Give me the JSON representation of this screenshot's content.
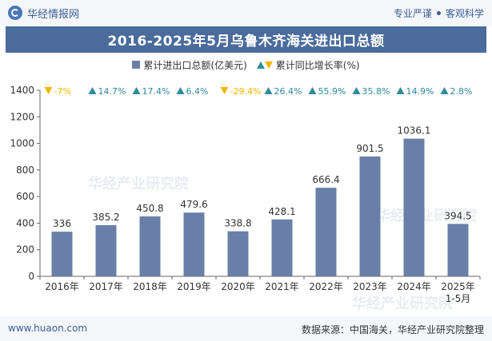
{
  "header": {
    "brand": "华经情报网",
    "slogan_left": "专业严谨",
    "slogan_right": "客观科学"
  },
  "title": "2016-2025年5月乌鲁木齐海关进出口总额",
  "legend": {
    "bar_label": "累计进出口总额(亿美元)",
    "growth_label": "累计同比增长率(%)"
  },
  "footer": {
    "website": "www.huaon.com",
    "source": "数据来源：中国海关，华经产业研究院整理"
  },
  "colors": {
    "bar": "#6a7fa8",
    "up": "#2e8b9a",
    "down": "#f2b600",
    "title_bg": "#4a6b9c"
  },
  "chart_data": {
    "type": "bar",
    "categories": [
      "2016年",
      "2017年",
      "2018年",
      "2019年",
      "2020年",
      "2021年",
      "2022年",
      "2023年",
      "2024年",
      "2025年\n1-5月"
    ],
    "series": [
      {
        "name": "累计进出口总额(亿美元)",
        "values": [
          336,
          385.2,
          450.8,
          479.6,
          338.8,
          428.1,
          666.4,
          901.5,
          1036.1,
          394.5
        ]
      },
      {
        "name": "累计同比增长率(%)",
        "values": [
          -7,
          14.7,
          17.4,
          6.4,
          -29.4,
          26.4,
          55.9,
          35.8,
          14.9,
          2.8
        ]
      }
    ],
    "value_labels": [
      "336",
      "385.2",
      "450.8",
      "479.6",
      "338.8",
      "428.1",
      "666.4",
      "901.5",
      "1036.1",
      "394.5"
    ],
    "growth_labels": [
      "-7%",
      "14.7%",
      "17.4%",
      "6.4%",
      "-29.4%",
      "26.4%",
      "55.9%",
      "35.8%",
      "14.9%",
      "2.8%"
    ],
    "yticks": [
      "0",
      "200",
      "400",
      "600",
      "800",
      "1000",
      "1200",
      "1400"
    ],
    "ylim": [
      0,
      1400
    ],
    "grid": false,
    "legend_position": "top"
  }
}
